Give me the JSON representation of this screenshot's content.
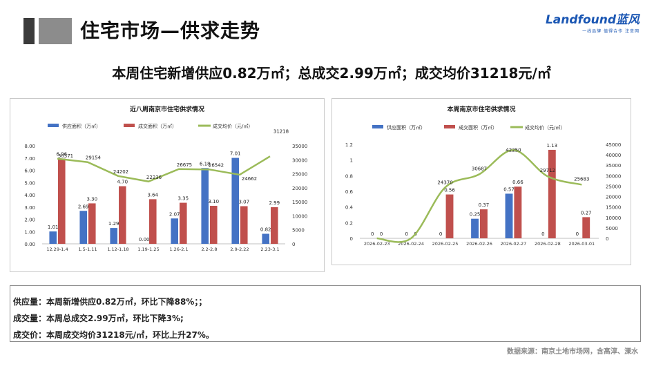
{
  "header": {
    "title": "住宅市场—供求走势",
    "logo_text": "Landfound蓝风",
    "logo_sub": "一线品牌 值得合作 注意网"
  },
  "headline": "本周住宅新增供应0.82万㎡；总成交2.99万㎡；成交均价31218元/㎡",
  "summary": {
    "supply": "供应量：本周新增供应0.82万㎡，环比下降88%；；",
    "deal": "成交量：本周总成交2.99万㎡，环比下降3%;",
    "price": "成交价：本周成交均价31218元/㎡，环比上升27%。"
  },
  "source": "数据来源：南京土地市场网，含高淳、溧水",
  "colors": {
    "supply": "#4472c4",
    "deal": "#c0504d",
    "price": "#9bbb59"
  },
  "chart_data": [
    {
      "type": "bar",
      "title": "近八周南京市住宅供求情况",
      "categories": [
        "12.29-1.4",
        "1.5-1.11",
        "1.12-1.18",
        "1.19-1.25",
        "1.26-2.1",
        "2.2-2.8",
        "2.9-2.22",
        "2.23-3.1"
      ],
      "series": [
        {
          "name": "供应面积（万㎡）",
          "kind": "bar",
          "axis": "left",
          "values": [
            1.01,
            2.69,
            1.29,
            0.0,
            2.07,
            6.18,
            7.01,
            0.82
          ],
          "labels": [
            "1.01",
            "2.69",
            "1.29",
            "0.00",
            "2.07",
            "6.18",
            "7.01",
            "0.82"
          ]
        },
        {
          "name": "成交面积（万㎡）",
          "kind": "bar",
          "axis": "left",
          "values": [
            6.96,
            3.3,
            4.7,
            3.64,
            3.35,
            3.1,
            3.07,
            2.99
          ],
          "labels": [
            "6.96",
            "3.30",
            "4.70",
            "3.64",
            "3.35",
            "3.10",
            "3.07",
            "2.99"
          ]
        },
        {
          "name": "成交均价（元/㎡）",
          "kind": "line",
          "axis": "right",
          "values": [
            30371,
            29154,
            24202,
            22236,
            26675,
            26542,
            24662,
            31218
          ],
          "labels": [
            "30371",
            "29154",
            "24202",
            "22236",
            "26675",
            "26542",
            "24662",
            "31218"
          ]
        }
      ],
      "ylim_left": [
        0,
        8
      ],
      "yticks_left": [
        "0.00",
        "1.00",
        "2.00",
        "3.00",
        "4.00",
        "5.00",
        "6.00",
        "7.00",
        "8.00"
      ],
      "ylim_right": [
        0,
        35000
      ],
      "yticks_right": [
        "0",
        "5000",
        "10000",
        "15000",
        "20000",
        "25000",
        "30000",
        "35000"
      ],
      "legend": "top"
    },
    {
      "type": "bar",
      "title": "本周南京市住宅供求情况",
      "categories": [
        "2026-02-23",
        "2026-02-24",
        "2026-02-25",
        "2026-02-26",
        "2026-02-27",
        "2026-02-28",
        "2026-03-01"
      ],
      "series": [
        {
          "name": "供应面积（万㎡）",
          "kind": "bar",
          "axis": "left",
          "values": [
            0,
            0,
            0,
            0.25,
            0.57,
            0,
            0
          ],
          "labels": [
            "0",
            "0",
            "0",
            "0.25",
            "0.57",
            "0",
            "0"
          ]
        },
        {
          "name": "成交面积（万㎡）",
          "kind": "bar",
          "axis": "left",
          "values": [
            0,
            0,
            0.56,
            0.37,
            0.66,
            1.13,
            0.27
          ],
          "labels": [
            "0",
            "0",
            "0.56",
            "0.37",
            "0.66",
            "1.13",
            "0.27"
          ]
        },
        {
          "name": "成交均价（元/㎡）",
          "kind": "line",
          "axis": "right",
          "values": [
            0,
            0,
            24370,
            30687,
            42250,
            29712,
            25683
          ],
          "labels": [
            "",
            "",
            "24370",
            "30687",
            "42250",
            "29712",
            "25683"
          ]
        }
      ],
      "ylim_left": [
        0,
        1.2
      ],
      "yticks_left": [
        "0",
        "0.2",
        "0.4",
        "0.6",
        "0.8",
        "1",
        "1.2"
      ],
      "ylim_right": [
        0,
        45000
      ],
      "yticks_right": [
        "0",
        "5000",
        "10000",
        "15000",
        "20000",
        "25000",
        "30000",
        "35000",
        "40000",
        "45000"
      ],
      "legend": "top"
    }
  ]
}
